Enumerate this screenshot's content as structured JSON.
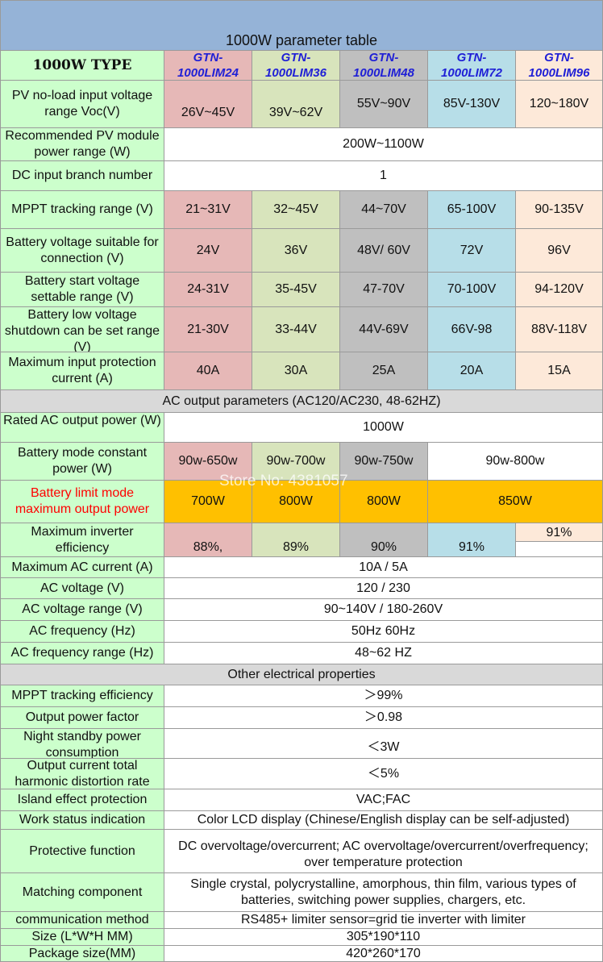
{
  "title": "1000W parameter table",
  "type_label": "1000W TYPE",
  "models": [
    "GTN-\n1000LIM24",
    "GTN-\n1000LIM36",
    "GTN-\n1000LIM48",
    "GTN-\n1000LIM72",
    "GTN-\n1000LIM96"
  ],
  "rows": {
    "pv_voc": {
      "label": "PV no-load input voltage range Voc(V)",
      "values": [
        "26V~45V",
        "39V~62V",
        "55V~90V",
        "85V-130V",
        "120~180V"
      ]
    },
    "pv_power": {
      "label": "Recommended PV module power range (W)",
      "value": "200W~1100W"
    },
    "dc_branch": {
      "label": "DC input branch number",
      "value": "1"
    },
    "mppt_range": {
      "label": "MPPT tracking range (V)",
      "values": [
        "21~31V",
        "32~45V",
        "44~70V",
        "65-100V",
        "90-135V"
      ]
    },
    "battery_voltage": {
      "label": "Battery voltage suitable for connection (V)",
      "values": [
        "24V",
        "36V",
        "48V/ 60V",
        "72V",
        "96V"
      ]
    },
    "battery_start": {
      "label": "Battery start voltage settable range (V)",
      "values": [
        "24-31V",
        "35-45V",
        "47-70V",
        "70-100V",
        "94-120V"
      ]
    },
    "battery_low": {
      "label": "Battery low voltage shutdown can be set range (V)",
      "values": [
        "21-30V",
        "33-44V",
        "44V-69V",
        "66V-98",
        "88V-118V"
      ]
    },
    "max_input_current": {
      "label": "Maximum input protection current (A)",
      "values": [
        "40A",
        "30A",
        "25A",
        "20A",
        "15A"
      ]
    },
    "rated_ac_power": {
      "label": "Rated AC output power (W)",
      "value": "1000W"
    },
    "battery_mode_power": {
      "label": "Battery mode constant power (W)",
      "values": [
        "90w-650w",
        "90w-700w",
        "90w-750w"
      ],
      "merged": "90w-800w"
    },
    "battery_limit_power": {
      "label": "Battery limit mode maximum output power",
      "values": [
        "700W",
        "800W",
        "800W"
      ],
      "merged": "850W"
    },
    "inverter_eff": {
      "label": "Maximum inverter efficiency",
      "values": [
        "88%,",
        "89%",
        "90%",
        "91%",
        "91%"
      ]
    },
    "max_ac_current": {
      "label": "Maximum AC current (A)",
      "value": "10A / 5A"
    },
    "ac_voltage": {
      "label": "AC voltage (V)",
      "value": "120 / 230"
    },
    "ac_voltage_range": {
      "label": "AC voltage range (V)",
      "value": "90~140V / 180-260V"
    },
    "ac_frequency": {
      "label": "AC frequency (Hz)",
      "value": "50Hz 60Hz"
    },
    "ac_frequency_range": {
      "label": "AC frequency range (Hz)",
      "value": "48~62 HZ"
    },
    "mppt_eff": {
      "label": "MPPT tracking efficiency",
      "value": "＞99%"
    },
    "power_factor": {
      "label": "Output power factor",
      "value": "＞0.98"
    },
    "night_standby": {
      "label": "Night standby power consumption",
      "value": "＜3W"
    },
    "thd": {
      "label": "Output current total harmonic distortion rate",
      "value": "＜5%"
    },
    "island": {
      "label": "Island effect protection",
      "value": "VAC;FAC"
    },
    "work_status": {
      "label": "Work status indication",
      "value": "Color LCD display (Chinese/English display can be self-adjusted)"
    },
    "protective": {
      "label": "Protective function",
      "value": "DC overvoltage/overcurrent; AC overvoltage/overcurrent/overfrequency; over temperature protection"
    },
    "matching": {
      "label": "Matching component",
      "value": "Single crystal, polycrystalline, amorphous, thin film, various types of batteries, switching power supplies, chargers, etc."
    },
    "communication": {
      "label": "communication method",
      "value": "RS485+ limiter sensor=grid tie inverter with limiter"
    },
    "size": {
      "label": "Size (L*W*H MM)",
      "value": "305*190*110"
    },
    "package_size": {
      "label": "Package size(MM)",
      "value": "420*260*170"
    }
  },
  "sections": {
    "ac_output": "AC output parameters (AC120/AC230, 48-62HZ)",
    "other": "Other electrical properties"
  },
  "watermark": "Store No: 4381057",
  "colors": {
    "title_bg": "#95b3d7",
    "label_bg": "#ccffcc",
    "section_bg": "#d9d9d9",
    "col24": "#e6b8b7",
    "col36": "#d8e4bc",
    "col48": "#bfbfbf",
    "col72": "#b7dee8",
    "col96": "#fde9d9",
    "highlight": "#ffc000",
    "model_text": "#1f1fd6",
    "warning_text": "#ff0000"
  }
}
